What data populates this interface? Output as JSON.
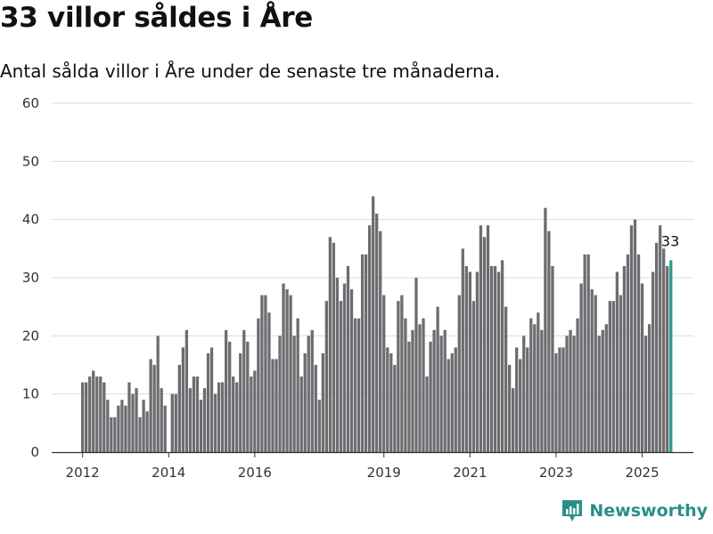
{
  "title": "33 villor såldes i Åre",
  "subtitle": "Antal sålda villor i Åre under de senaste tre månaderna.",
  "brand": {
    "name": "Newsworthy",
    "icon": "newsworthy-logo-icon",
    "color": "#2a8f8a"
  },
  "colors": {
    "bar": "#6d6c70",
    "highlight": "#2a9d8f",
    "grid": "#dcdcdc",
    "axis": "#333333"
  },
  "chart_data": {
    "type": "bar",
    "start_year": 2012,
    "ylim": [
      0,
      60
    ],
    "yticks": [
      0,
      10,
      20,
      30,
      40,
      50,
      60
    ],
    "xticks": [
      "2012",
      "2014",
      "2016",
      "2019",
      "2021",
      "2023",
      "2025"
    ],
    "grid": true,
    "highlight_last": true,
    "annotation": "33",
    "values": [
      12,
      12,
      13,
      14,
      13,
      13,
      12,
      9,
      6,
      6,
      8,
      9,
      8,
      12,
      10,
      11,
      6,
      9,
      7,
      16,
      15,
      20,
      11,
      8,
      null,
      10,
      10,
      15,
      18,
      21,
      11,
      13,
      13,
      9,
      11,
      17,
      18,
      10,
      12,
      12,
      21,
      19,
      13,
      12,
      17,
      21,
      19,
      13,
      14,
      23,
      27,
      27,
      24,
      16,
      16,
      20,
      29,
      28,
      27,
      20,
      23,
      13,
      17,
      20,
      21,
      15,
      9,
      17,
      26,
      37,
      36,
      30,
      26,
      29,
      32,
      28,
      23,
      23,
      34,
      34,
      39,
      44,
      41,
      38,
      27,
      18,
      17,
      15,
      26,
      27,
      23,
      19,
      21,
      30,
      22,
      23,
      13,
      19,
      21,
      25,
      20,
      21,
      16,
      17,
      18,
      27,
      35,
      32,
      31,
      26,
      31,
      39,
      37,
      39,
      32,
      32,
      31,
      33,
      25,
      15,
      11,
      18,
      16,
      20,
      18,
      23,
      22,
      24,
      21,
      42,
      38,
      32,
      17,
      18,
      18,
      20,
      21,
      20,
      23,
      29,
      34,
      34,
      28,
      27,
      20,
      21,
      22,
      26,
      26,
      31,
      27,
      32,
      34,
      39,
      40,
      34,
      29,
      20,
      22,
      31,
      36,
      39,
      35,
      32,
      33
    ]
  }
}
